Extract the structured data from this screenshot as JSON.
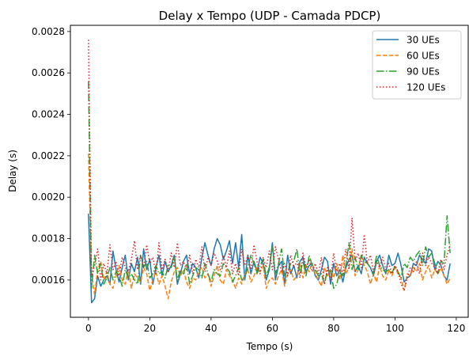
{
  "chart_data": {
    "type": "line",
    "title": "Delay x Tempo (UDP - Camada PDCP)",
    "xlabel": "Tempo (s)",
    "ylabel": "Delay (s)",
    "xlim": [
      -5.9,
      123.9
    ],
    "ylim": [
      0.00142,
      0.00283
    ],
    "xticks": [
      0,
      20,
      40,
      60,
      80,
      100,
      120
    ],
    "yticks": [
      0.0016,
      0.0018,
      0.002,
      0.0022,
      0.0024,
      0.0026,
      0.0028
    ],
    "xtick_labels": [
      "0",
      "20",
      "40",
      "60",
      "80",
      "100",
      "120"
    ],
    "ytick_labels": [
      "0.0016",
      "0.0018",
      "0.0020",
      "0.0022",
      "0.0024",
      "0.0026",
      "0.0028"
    ],
    "grid": false,
    "legend_position": "top-right",
    "series": [
      {
        "name": "30 UEs",
        "color": "#1f77b4",
        "dash": "solid",
        "x": [
          0,
          1,
          2,
          3,
          4,
          5,
          6,
          7,
          8,
          9,
          10,
          11,
          12,
          13,
          14,
          15,
          16,
          17,
          18,
          19,
          20,
          21,
          22,
          23,
          24,
          25,
          26,
          27,
          28,
          29,
          30,
          31,
          32,
          33,
          34,
          35,
          36,
          37,
          38,
          39,
          40,
          41,
          42,
          43,
          44,
          45,
          46,
          47,
          48,
          49,
          50,
          51,
          52,
          53,
          54,
          55,
          56,
          57,
          58,
          59,
          60,
          61,
          62,
          63,
          64,
          65,
          66,
          67,
          68,
          69,
          70,
          71,
          72,
          73,
          74,
          75,
          76,
          77,
          78,
          79,
          80,
          81,
          82,
          83,
          84,
          85,
          86,
          87,
          88,
          89,
          90,
          91,
          92,
          93,
          94,
          95,
          96,
          97,
          98,
          99,
          100,
          101,
          102,
          103,
          104,
          105,
          106,
          107,
          108,
          109,
          110,
          111,
          112,
          113,
          114,
          115,
          116,
          117,
          118
        ],
        "y": [
          0.00192,
          0.00149,
          0.00151,
          0.00162,
          0.00157,
          0.0016,
          0.00162,
          0.00158,
          0.00174,
          0.00165,
          0.00159,
          0.00166,
          0.00172,
          0.0016,
          0.00168,
          0.00164,
          0.00171,
          0.00158,
          0.00175,
          0.00165,
          0.0017,
          0.00158,
          0.00166,
          0.00172,
          0.00162,
          0.00169,
          0.00164,
          0.00167,
          0.00172,
          0.00158,
          0.00163,
          0.00169,
          0.00172,
          0.00163,
          0.00168,
          0.00166,
          0.00161,
          0.00171,
          0.00178,
          0.00172,
          0.00167,
          0.00175,
          0.0018,
          0.00177,
          0.0017,
          0.00174,
          0.00179,
          0.00168,
          0.00178,
          0.00166,
          0.00182,
          0.0016,
          0.00172,
          0.00163,
          0.00169,
          0.00164,
          0.00171,
          0.00168,
          0.0016,
          0.00165,
          0.00178,
          0.0016,
          0.00167,
          0.00169,
          0.00158,
          0.00172,
          0.00163,
          0.00167,
          0.00161,
          0.00169,
          0.00171,
          0.00164,
          0.00167,
          0.00168,
          0.00162,
          0.0016,
          0.00165,
          0.00171,
          0.00169,
          0.00158,
          0.00168,
          0.00162,
          0.00165,
          0.00159,
          0.00166,
          0.0017,
          0.00172,
          0.00164,
          0.00167,
          0.00163,
          0.00171,
          0.00168,
          0.00166,
          0.00162,
          0.00169,
          0.00172,
          0.00167,
          0.00163,
          0.00172,
          0.00167,
          0.00168,
          0.00173,
          0.00167,
          0.00159,
          0.00161,
          0.00162,
          0.00168,
          0.00167,
          0.00172,
          0.0017,
          0.00168,
          0.00175,
          0.00174,
          0.00165,
          0.00169,
          0.00167,
          0.00162,
          0.0016,
          0.00168
        ]
      },
      {
        "name": "60 UEs",
        "color": "#ff7f0e",
        "dash": "dashed",
        "x": [
          0,
          1,
          2,
          3,
          4,
          5,
          6,
          7,
          8,
          9,
          10,
          11,
          12,
          13,
          14,
          15,
          16,
          17,
          18,
          19,
          20,
          21,
          22,
          23,
          24,
          25,
          26,
          27,
          28,
          29,
          30,
          31,
          32,
          33,
          34,
          35,
          36,
          37,
          38,
          39,
          40,
          41,
          42,
          43,
          44,
          45,
          46,
          47,
          48,
          49,
          50,
          51,
          52,
          53,
          54,
          55,
          56,
          57,
          58,
          59,
          60,
          61,
          62,
          63,
          64,
          65,
          66,
          67,
          68,
          69,
          70,
          71,
          72,
          73,
          74,
          75,
          76,
          77,
          78,
          79,
          80,
          81,
          82,
          83,
          84,
          85,
          86,
          87,
          88,
          89,
          90,
          91,
          92,
          93,
          94,
          95,
          96,
          97,
          98,
          99,
          100,
          101,
          102,
          103,
          104,
          105,
          106,
          107,
          108,
          109,
          110,
          111,
          112,
          113,
          114,
          115,
          116,
          117,
          118
        ],
        "y": [
          0.00221,
          0.00163,
          0.00153,
          0.00165,
          0.00169,
          0.0016,
          0.00164,
          0.00158,
          0.00156,
          0.00162,
          0.00167,
          0.0016,
          0.00158,
          0.00165,
          0.00156,
          0.00163,
          0.00161,
          0.00159,
          0.00166,
          0.00163,
          0.00155,
          0.0016,
          0.00164,
          0.00158,
          0.00162,
          0.00157,
          0.00151,
          0.00159,
          0.00164,
          0.00166,
          0.00162,
          0.00165,
          0.00159,
          0.00156,
          0.00161,
          0.0016,
          0.00164,
          0.00166,
          0.00161,
          0.00163,
          0.00157,
          0.00162,
          0.00167,
          0.0016,
          0.00158,
          0.00165,
          0.00162,
          0.0016,
          0.00156,
          0.00161,
          0.00158,
          0.00163,
          0.00165,
          0.00159,
          0.00162,
          0.00166,
          0.00164,
          0.00167,
          0.00156,
          0.0016,
          0.00161,
          0.00158,
          0.00162,
          0.00165,
          0.00157,
          0.00163,
          0.00165,
          0.0016,
          0.00162,
          0.00168,
          0.00161,
          0.00167,
          0.00164,
          0.00168,
          0.00163,
          0.0016,
          0.00157,
          0.00166,
          0.00162,
          0.00165,
          0.00161,
          0.00168,
          0.0016,
          0.00172,
          0.00163,
          0.00166,
          0.00175,
          0.00162,
          0.00165,
          0.00172,
          0.00167,
          0.00164,
          0.00158,
          0.00163,
          0.00159,
          0.00167,
          0.00162,
          0.0016,
          0.00165,
          0.00162,
          0.00166,
          0.00163,
          0.00161,
          0.00155,
          0.00163,
          0.00162,
          0.00166,
          0.00164,
          0.00168,
          0.0016,
          0.00164,
          0.00167,
          0.00161,
          0.00165,
          0.00163,
          0.00166,
          0.00162,
          0.00158,
          0.00161
        ]
      },
      {
        "name": "90 UEs",
        "color": "#2ca02c",
        "dash": "dashdot",
        "x": [
          0,
          1,
          2,
          3,
          4,
          5,
          6,
          7,
          8,
          9,
          10,
          11,
          12,
          13,
          14,
          15,
          16,
          17,
          18,
          19,
          20,
          21,
          22,
          23,
          24,
          25,
          26,
          27,
          28,
          29,
          30,
          31,
          32,
          33,
          34,
          35,
          36,
          37,
          38,
          39,
          40,
          41,
          42,
          43,
          44,
          45,
          46,
          47,
          48,
          49,
          50,
          51,
          52,
          53,
          54,
          55,
          56,
          57,
          58,
          59,
          60,
          61,
          62,
          63,
          64,
          65,
          66,
          67,
          68,
          69,
          70,
          71,
          72,
          73,
          74,
          75,
          76,
          77,
          78,
          79,
          80,
          81,
          82,
          83,
          84,
          85,
          86,
          87,
          88,
          89,
          90,
          91,
          92,
          93,
          94,
          95,
          96,
          97,
          98,
          99,
          100,
          101,
          102,
          103,
          104,
          105,
          106,
          107,
          108,
          109,
          110,
          111,
          112,
          113,
          114,
          115,
          116,
          117,
          118
        ],
        "y": [
          0.00256,
          0.00156,
          0.00172,
          0.00163,
          0.00168,
          0.00158,
          0.00161,
          0.00166,
          0.0016,
          0.00164,
          0.00162,
          0.00157,
          0.00165,
          0.00161,
          0.00163,
          0.0016,
          0.00158,
          0.00172,
          0.00166,
          0.00169,
          0.00161,
          0.00163,
          0.00167,
          0.00163,
          0.00164,
          0.00161,
          0.00167,
          0.00166,
          0.00171,
          0.0016,
          0.00165,
          0.00163,
          0.00168,
          0.00158,
          0.00162,
          0.00166,
          0.00165,
          0.00161,
          0.00168,
          0.00163,
          0.00159,
          0.00165,
          0.00163,
          0.00162,
          0.00168,
          0.00166,
          0.00164,
          0.00159,
          0.00162,
          0.00166,
          0.0016,
          0.00161,
          0.00166,
          0.00172,
          0.00168,
          0.00163,
          0.00167,
          0.0017,
          0.00162,
          0.00166,
          0.00176,
          0.00163,
          0.00168,
          0.00175,
          0.00162,
          0.00164,
          0.00168,
          0.00169,
          0.00175,
          0.00163,
          0.00169,
          0.00162,
          0.00172,
          0.00167,
          0.00165,
          0.00162,
          0.00163,
          0.00158,
          0.00165,
          0.00164,
          0.00156,
          0.00158,
          0.00164,
          0.00162,
          0.00167,
          0.00178,
          0.00165,
          0.00171,
          0.00165,
          0.00172,
          0.00169,
          0.00168,
          0.00166,
          0.00163,
          0.00172,
          0.00167,
          0.00165,
          0.00164,
          0.00165,
          0.00163,
          0.00167,
          0.00164,
          0.00161,
          0.00168,
          0.00166,
          0.00171,
          0.00169,
          0.00172,
          0.00174,
          0.00167,
          0.00176,
          0.00171,
          0.00173,
          0.00168,
          0.00163,
          0.00169,
          0.00168,
          0.00191,
          0.00173
        ]
      },
      {
        "name": "120 UEs",
        "color": "#d62728",
        "dash": "dotted",
        "x": [
          0,
          1,
          2,
          3,
          4,
          5,
          6,
          7,
          8,
          9,
          10,
          11,
          12,
          13,
          14,
          15,
          16,
          17,
          18,
          19,
          20,
          21,
          22,
          23,
          24,
          25,
          26,
          27,
          28,
          29,
          30,
          31,
          32,
          33,
          34,
          35,
          36,
          37,
          38,
          39,
          40,
          41,
          42,
          43,
          44,
          45,
          46,
          47,
          48,
          49,
          50,
          51,
          52,
          53,
          54,
          55,
          56,
          57,
          58,
          59,
          60,
          61,
          62,
          63,
          64,
          65,
          66,
          67,
          68,
          69,
          70,
          71,
          72,
          73,
          74,
          75,
          76,
          77,
          78,
          79,
          80,
          81,
          82,
          83,
          84,
          85,
          86,
          87,
          88,
          89,
          90,
          91,
          92,
          93,
          94,
          95,
          96,
          97,
          98,
          99,
          100,
          101,
          102,
          103,
          104,
          105,
          106,
          107,
          108,
          109,
          110,
          111,
          112,
          113,
          114,
          115,
          116,
          117,
          118
        ],
        "y": [
          0.00276,
          0.00162,
          0.00167,
          0.00175,
          0.0016,
          0.00168,
          0.00163,
          0.00177,
          0.00165,
          0.00169,
          0.00162,
          0.00171,
          0.00166,
          0.00164,
          0.0017,
          0.00179,
          0.00165,
          0.00172,
          0.00166,
          0.00177,
          0.00168,
          0.00171,
          0.00163,
          0.00178,
          0.00165,
          0.0017,
          0.00164,
          0.00173,
          0.00166,
          0.00178,
          0.00167,
          0.00169,
          0.00165,
          0.00172,
          0.00163,
          0.0017,
          0.00166,
          0.00176,
          0.00164,
          0.00171,
          0.00167,
          0.00173,
          0.00169,
          0.00165,
          0.00172,
          0.00166,
          0.00174,
          0.00163,
          0.00168,
          0.00162,
          0.00175,
          0.00167,
          0.00172,
          0.00165,
          0.00177,
          0.00169,
          0.00163,
          0.00171,
          0.00166,
          0.00174,
          0.00165,
          0.00176,
          0.0017,
          0.00164,
          0.00168,
          0.00162,
          0.00172,
          0.00166,
          0.00169,
          0.00161,
          0.00173,
          0.00166,
          0.0017,
          0.00164,
          0.00168,
          0.00163,
          0.00171,
          0.00158,
          0.00166,
          0.0016,
          0.00173,
          0.00164,
          0.00168,
          0.00163,
          0.00175,
          0.00165,
          0.0019,
          0.00169,
          0.00173,
          0.00166,
          0.00182,
          0.00168,
          0.00172,
          0.00164,
          0.00169,
          0.00166,
          0.00171,
          0.00165,
          0.00168,
          0.00163,
          0.00167,
          0.00164,
          0.00158,
          0.00155,
          0.00161,
          0.00166,
          0.00164,
          0.00169,
          0.00163,
          0.00173,
          0.00167,
          0.00171,
          0.00168,
          0.00166,
          0.00163,
          0.0017,
          0.00165,
          0.00172,
          0.00177
        ]
      }
    ]
  }
}
